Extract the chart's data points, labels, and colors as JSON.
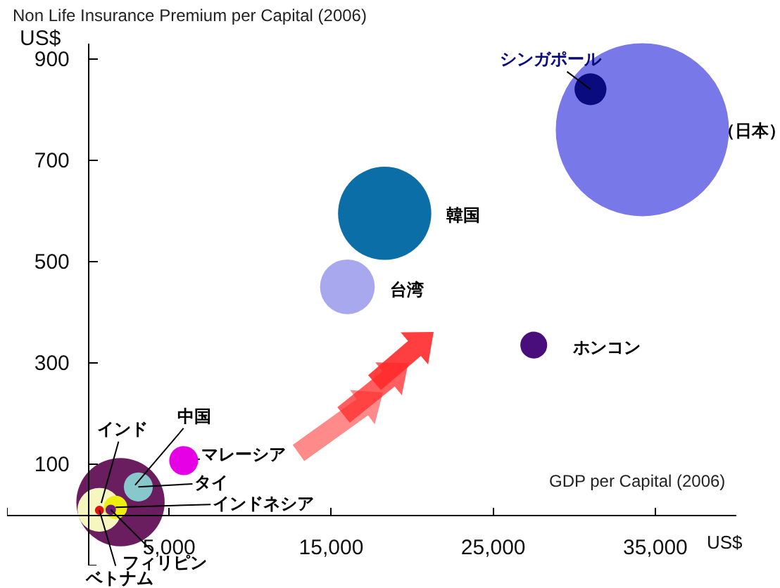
{
  "chart_data": {
    "type": "bubble",
    "xlabel": "GDP per Capital (2006)",
    "ylabel": "Non Life Insurance Premium per Capital (2006)",
    "annotations": [
      "US$",
      "US$"
    ],
    "xlim": [
      -5000,
      40000
    ],
    "ylim": [
      -100,
      930
    ],
    "xticks": [
      {
        "value": -5000,
        "label": null
      },
      {
        "value": 5000,
        "label": "5,000"
      },
      {
        "value": 15000,
        "label": "15,000"
      },
      {
        "value": 25000,
        "label": "25,000"
      },
      {
        "value": 35000,
        "label": "35,000"
      }
    ],
    "yticks": [
      {
        "value": -100,
        "label": null
      },
      100,
      300,
      500,
      700,
      900
    ],
    "series": [
      {
        "name": "（日本）",
        "color": "#7878e8",
        "x": [
          34200
        ],
        "values": [
          760
        ],
        "sizes": [
          1
        ]
      },
      {
        "name": "シンガポール",
        "color": "#0b0b80",
        "x": [
          31000
        ],
        "values": [
          840
        ],
        "sizes": [
          0.034
        ]
      },
      {
        "name": "韓国",
        "color": "#0c6ea6",
        "x": [
          18300
        ],
        "values": [
          595
        ],
        "sizes": [
          0.29
        ]
      },
      {
        "name": "台湾",
        "color": "#a8a8ee",
        "x": [
          16000
        ],
        "values": [
          450
        ],
        "sizes": [
          0.1
        ]
      },
      {
        "name": "ホンコン",
        "color": "#4a0e7c",
        "x": [
          27500
        ],
        "values": [
          335
        ],
        "sizes": [
          0.024
        ]
      },
      {
        "name": "マレーシア",
        "color": "#e600e6",
        "x": [
          5900
        ],
        "values": [
          107
        ],
        "sizes": [
          0.028
        ]
      },
      {
        "name": "中国",
        "color": "#6b1e5f",
        "x": [
          2000
        ],
        "values": [
          25
        ],
        "sizes": [
          0.26
        ]
      },
      {
        "name": "タイ",
        "color": "#86c8cc",
        "x": [
          3100
        ],
        "values": [
          55
        ],
        "sizes": [
          0.028
        ]
      },
      {
        "name": "インド",
        "color": "#f6f6c0",
        "x": [
          700
        ],
        "values": [
          10
        ],
        "sizes": [
          0.064
        ]
      },
      {
        "name": "インドネシア",
        "color": "#eeee10",
        "x": [
          1700
        ],
        "values": [
          15
        ],
        "sizes": [
          0.018
        ]
      },
      {
        "name": "フィリピン",
        "color": "#6c1a78",
        "x": [
          1400
        ],
        "values": [
          10
        ],
        "sizes": [
          0.0036
        ]
      },
      {
        "name": "ベトナム",
        "color": "#e01010",
        "x": [
          700
        ],
        "values": [
          9
        ],
        "sizes": [
          0.0027
        ]
      }
    ]
  }
}
